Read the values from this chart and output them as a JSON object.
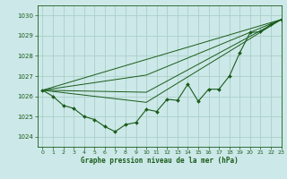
{
  "title": "Graphe pression niveau de la mer (hPa)",
  "bg_color": "#cce8e8",
  "grid_color": "#aad0c8",
  "line_color": "#1a5c1a",
  "xlim": [
    -0.5,
    23
  ],
  "ylim": [
    1023.5,
    1030.5
  ],
  "yticks": [
    1024,
    1025,
    1026,
    1027,
    1028,
    1029,
    1030
  ],
  "xticks": [
    0,
    1,
    2,
    3,
    4,
    5,
    6,
    7,
    8,
    9,
    10,
    11,
    12,
    13,
    14,
    15,
    16,
    17,
    18,
    19,
    20,
    21,
    22,
    23
  ],
  "series_main": {
    "x": [
      0,
      1,
      2,
      3,
      4,
      5,
      6,
      7,
      8,
      9,
      10,
      11,
      12,
      13,
      14,
      15,
      16,
      17,
      18,
      19,
      20,
      21,
      22,
      23
    ],
    "y": [
      1026.3,
      1026.0,
      1025.55,
      1025.4,
      1025.0,
      1024.85,
      1024.5,
      1024.25,
      1024.6,
      1024.7,
      1025.35,
      1025.25,
      1025.85,
      1025.8,
      1026.6,
      1025.75,
      1026.35,
      1026.35,
      1027.0,
      1028.15,
      1029.15,
      1029.2,
      1029.55,
      1029.8
    ]
  },
  "trend_lines": [
    {
      "x": [
        0,
        23
      ],
      "y": [
        1026.3,
        1029.8
      ]
    },
    {
      "x": [
        0,
        10,
        23
      ],
      "y": [
        1026.3,
        1027.05,
        1029.8
      ]
    },
    {
      "x": [
        0,
        10,
        23
      ],
      "y": [
        1026.3,
        1026.2,
        1029.8
      ]
    },
    {
      "x": [
        0,
        10,
        23
      ],
      "y": [
        1026.3,
        1025.7,
        1029.8
      ]
    }
  ]
}
